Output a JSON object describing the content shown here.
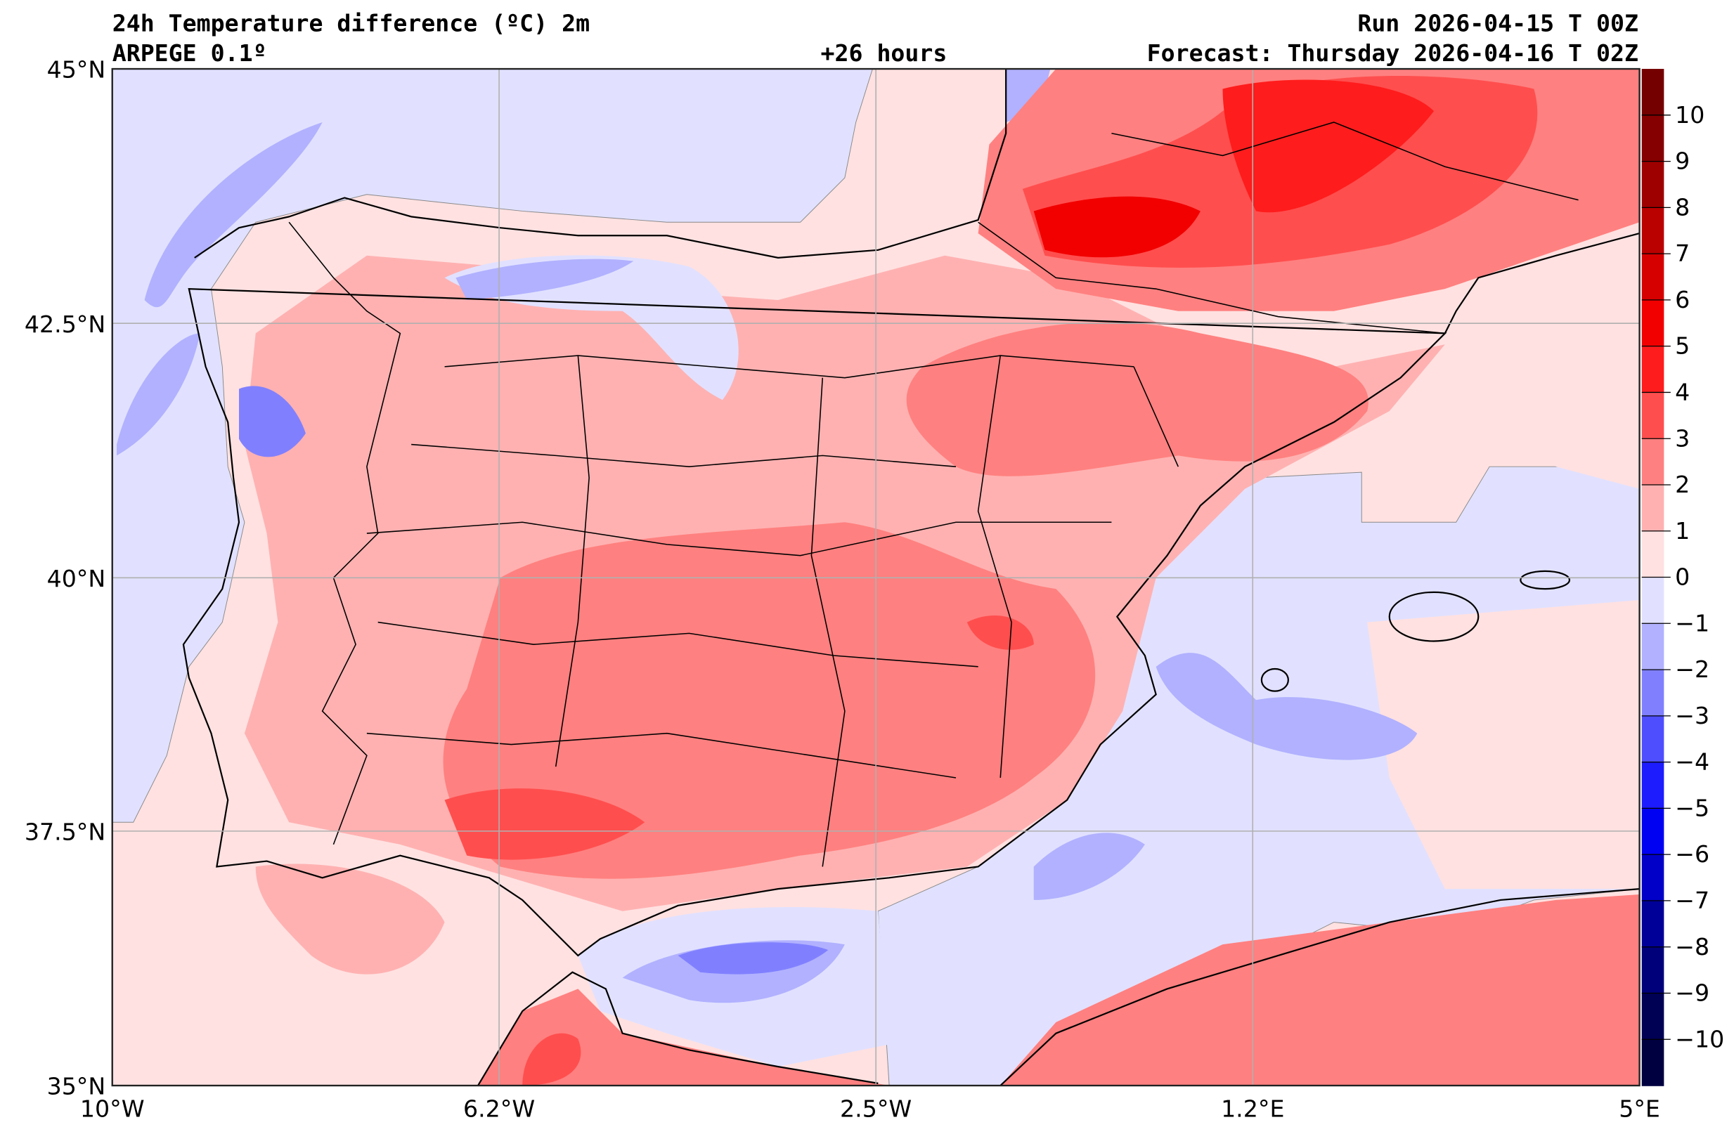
{
  "header": {
    "title": "24h Temperature difference (ºC) 2m",
    "model": "ARPEGE 0.1º",
    "lead_time": "+26 hours",
    "run": "Run 2026-04-15 T 00Z",
    "forecast": "Forecast: Thursday 2026-04-16 T 02Z"
  },
  "axes": {
    "lat_labels": [
      "45°N",
      "42.5°N",
      "40°N",
      "37.5°N",
      "35°N"
    ],
    "lon_labels": [
      "10°W",
      "6.2°W",
      "2.5°W",
      "1.2°E",
      "5°E"
    ]
  },
  "colorbar": {
    "ticks": [
      "10",
      "9",
      "8",
      "7",
      "6",
      "5",
      "4",
      "3",
      "2",
      "1",
      "0",
      "−1",
      "−2",
      "−3",
      "−4",
      "−5",
      "−6",
      "−7",
      "−8",
      "−9",
      "−10"
    ],
    "colors": [
      "#740000",
      "#850000",
      "#9e0000",
      "#bb0000",
      "#d70000",
      "#f20000",
      "#ff1c1c",
      "#ff4e4e",
      "#ff8080",
      "#ffb1b1",
      "#ffe1e1",
      "#e1e1ff",
      "#b1b1ff",
      "#8080ff",
      "#4e4eff",
      "#1c1cff",
      "#0000f2",
      "#0000c8",
      "#000099",
      "#00007a",
      "#000055",
      "#000040"
    ]
  }
}
